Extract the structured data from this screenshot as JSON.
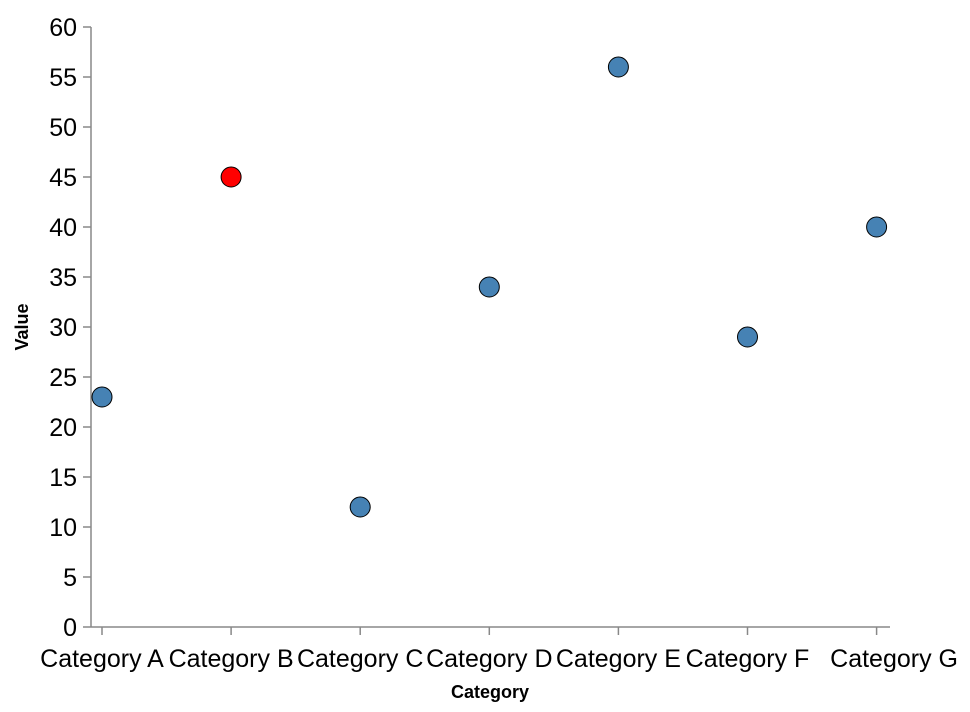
{
  "chart_data": {
    "type": "scatter",
    "categories": [
      "Category A",
      "Category B",
      "Category C",
      "Category D",
      "Category E",
      "Category F",
      "Category G"
    ],
    "values": [
      23,
      45,
      12,
      34,
      56,
      29,
      40
    ],
    "highlight_index": 1,
    "xlabel": "Category",
    "ylabel": "Value",
    "ylim": [
      0,
      60
    ],
    "yticks": [
      0,
      5,
      10,
      15,
      20,
      25,
      30,
      35,
      40,
      45,
      50,
      55,
      60
    ],
    "grid": false,
    "colors": {
      "point": "#4682b4",
      "highlight": "#ff0000"
    }
  }
}
